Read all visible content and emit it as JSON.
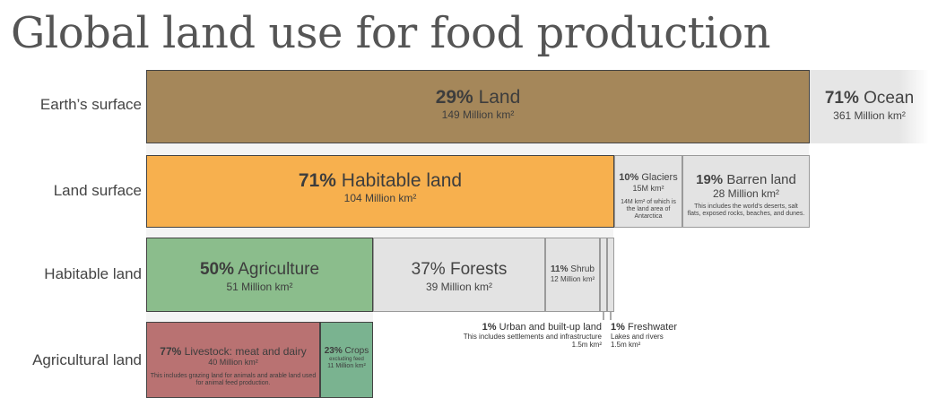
{
  "title": "Global land use for food production",
  "chart_data": {
    "type": "bar",
    "rows": [
      {
        "label": "Earth’s surface",
        "segments": [
          {
            "pct": "29%",
            "name": "Land",
            "area": "149 Million km²",
            "value": 29
          },
          {
            "pct": "71%",
            "name": "Ocean",
            "area": "361 Million km²",
            "value": 71
          }
        ]
      },
      {
        "label": "Land surface",
        "segments": [
          {
            "pct": "71%",
            "name": "Habitable land",
            "area": "104 Million km²",
            "value": 71
          },
          {
            "pct": "10%",
            "name": "Glaciers",
            "area": "15M km²",
            "note": "14M km² of which is the land area of Antarctica",
            "value": 10
          },
          {
            "pct": "19%",
            "name": "Barren land",
            "area": "28 Million km²",
            "note": "This includes the world's deserts, salt flats, exposed rocks, beaches, and dunes.",
            "value": 19
          }
        ]
      },
      {
        "label": "Habitable land",
        "segments": [
          {
            "pct": "50%",
            "name": "Agriculture",
            "area": "51 Million km²",
            "value": 50
          },
          {
            "pct": "37%",
            "name": "Forests",
            "area": "39 Million km²",
            "value": 37
          },
          {
            "pct": "11%",
            "name": "Shrub",
            "area": "12 Million km²",
            "value": 11
          },
          {
            "pct": "1%",
            "name": "Urban and built-up land",
            "area": "1.5m km²",
            "note": "This includes settlements and infrastructure",
            "value": 1
          },
          {
            "pct": "1%",
            "name": "Freshwater",
            "area": "1.5m km²",
            "note": "Lakes and rivers",
            "value": 1
          }
        ]
      },
      {
        "label": "Agricultural land",
        "segments": [
          {
            "pct": "77%",
            "name": "Livestock: meat and dairy",
            "area": "40 Million km²",
            "note": "This includes grazing land for animals and arable land used for animal feed production.",
            "value": 77
          },
          {
            "pct": "23%",
            "name": "Crops",
            "area": "11 Million km²",
            "note": "excluding feed",
            "value": 23
          }
        ]
      }
    ]
  }
}
